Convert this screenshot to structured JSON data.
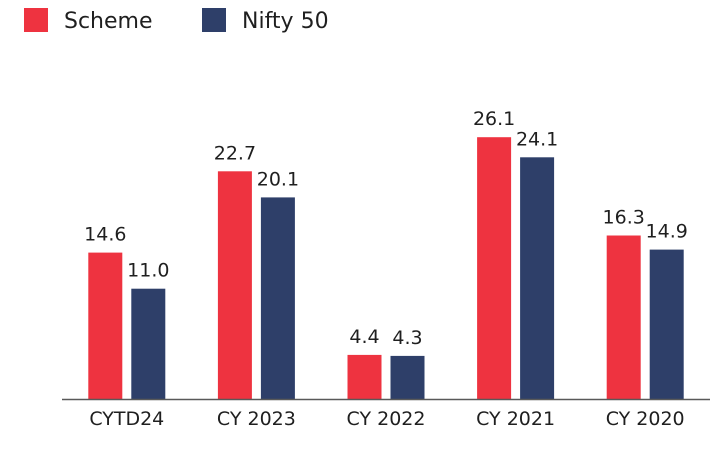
{
  "chart_data": {
    "type": "bar",
    "categories": [
      "CYTD24",
      "CY 2023",
      "CY 2022",
      "CY 2021",
      "CY 2020"
    ],
    "series": [
      {
        "name": "Scheme",
        "color": "#EE3340",
        "values": [
          14.6,
          22.7,
          4.4,
          26.1,
          16.3
        ],
        "labels": [
          "14.6",
          "22.7",
          "4.4",
          "26.1",
          "16.3"
        ]
      },
      {
        "name": "Nifty 50",
        "color": "#2E3F69",
        "values": [
          11.0,
          20.1,
          4.3,
          24.1,
          14.9
        ],
        "labels": [
          "11.0",
          "20.1",
          "4.3",
          "24.1",
          "14.9"
        ]
      }
    ],
    "ylim": [
      0,
      30
    ],
    "grid": false,
    "axis_color": "#595959",
    "legend": "top-left"
  }
}
